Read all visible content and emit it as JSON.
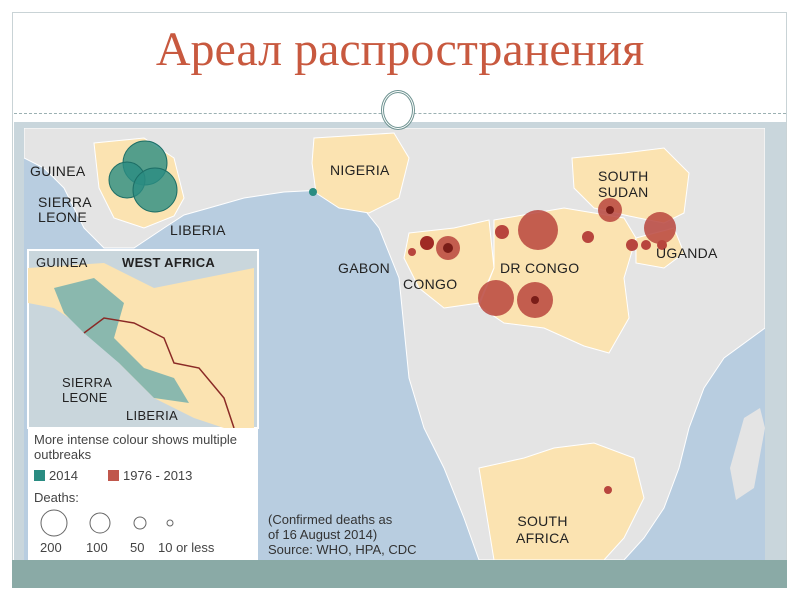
{
  "slide": {
    "title": "Ареал распространения"
  },
  "map": {
    "labels": {
      "guinea": "GUINEA",
      "sierra_leone": "SIERRA\nLEONE",
      "liberia": "LIBERIA",
      "nigeria": "NIGERIA",
      "south_sudan": "SOUTH\nSUDAN",
      "uganda": "UGANDA",
      "gabon": "GABON",
      "congo": "CONGO",
      "dr_congo": "DR CONGO",
      "south_africa": "SOUTH\nAFRICA"
    },
    "inset": {
      "title": "WEST AFRICA",
      "guinea": "GUINEA",
      "sierra_leone": "SIERRA\nLEONE",
      "liberia": "LIBERIA"
    },
    "colors": {
      "ocean": "#b8cde0",
      "land": "#e4e4e4",
      "affected": "#fbe3b1",
      "outbreak_2014": "#2a8c82",
      "outbreak_1976_2013": "#b8453d"
    }
  },
  "legend": {
    "note": "More intense colour shows multiple outbreaks",
    "series": [
      {
        "label": "2014",
        "color": "#2a8c82"
      },
      {
        "label": "1976 - 2013",
        "color": "#b8453d"
      }
    ],
    "deaths_title": "Deaths:",
    "sizes": [
      "200",
      "100",
      "50",
      "10 or less"
    ]
  },
  "source": {
    "line1": "(Confirmed deaths as",
    "line2": "of 16 August 2014)",
    "line3": "Source: WHO, HPA, CDC"
  }
}
